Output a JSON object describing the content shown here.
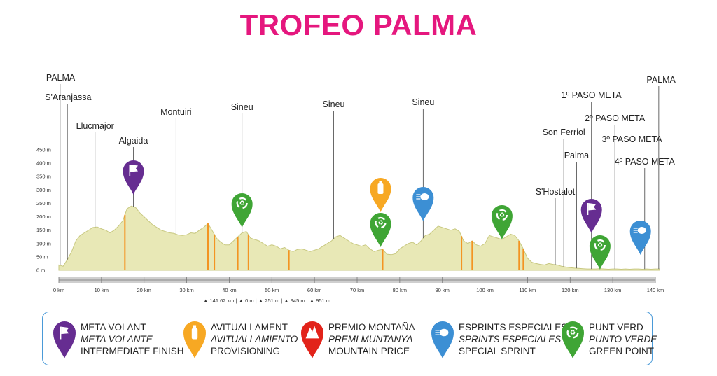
{
  "title": "TROFEO PALMA",
  "profile": {
    "y_axis": {
      "min": 0,
      "max": 450,
      "step": 50,
      "unit": "m"
    },
    "x_axis": {
      "min": 0,
      "max": 140,
      "step": 10,
      "unit": "km"
    },
    "elevation_km": [
      0,
      1,
      2,
      3,
      4,
      5,
      6,
      7,
      8,
      9,
      10,
      11,
      12,
      13,
      14,
      15,
      16,
      17,
      18,
      19,
      20,
      21,
      22,
      23,
      24,
      25,
      26,
      27,
      28,
      29,
      30,
      31,
      32,
      33,
      34,
      35,
      36,
      37,
      38,
      39,
      40,
      41,
      42,
      43,
      44,
      45,
      46,
      47,
      48,
      49,
      50,
      51,
      52,
      53,
      54,
      55,
      56,
      57,
      58,
      59,
      60,
      61,
      62,
      63,
      64,
      65,
      66,
      67,
      68,
      69,
      70,
      71,
      72,
      73,
      74,
      75,
      76,
      77,
      78,
      79,
      80,
      81,
      82,
      83,
      84,
      85,
      86,
      87,
      88,
      89,
      90,
      91,
      92,
      93,
      94,
      95,
      96,
      97,
      98,
      99,
      100,
      101,
      102,
      103,
      104,
      105,
      106,
      107,
      108,
      109,
      110,
      111,
      112,
      113,
      114,
      115,
      116,
      117,
      118,
      119,
      120,
      121,
      122,
      123,
      124,
      125,
      126,
      127,
      128,
      129,
      130,
      131,
      132,
      133,
      134,
      135,
      136,
      137,
      138,
      139,
      140,
      141
    ],
    "elevation_m": [
      20,
      15,
      40,
      70,
      110,
      130,
      140,
      150,
      160,
      162,
      155,
      150,
      140,
      150,
      165,
      185,
      230,
      240,
      235,
      215,
      200,
      185,
      170,
      160,
      150,
      145,
      140,
      138,
      132,
      130,
      133,
      140,
      138,
      150,
      160,
      175,
      148,
      120,
      105,
      95,
      95,
      110,
      125,
      140,
      145,
      120,
      115,
      110,
      100,
      90,
      95,
      90,
      80,
      85,
      75,
      70,
      78,
      80,
      75,
      70,
      75,
      80,
      90,
      100,
      110,
      125,
      130,
      120,
      110,
      100,
      95,
      90,
      95,
      80,
      70,
      75,
      78,
      60,
      58,
      62,
      80,
      90,
      100,
      105,
      95,
      110,
      130,
      135,
      150,
      165,
      160,
      155,
      150,
      155,
      145,
      110,
      100,
      110,
      95,
      90,
      100,
      130,
      125,
      120,
      115,
      125,
      135,
      130,
      110,
      80,
      45,
      30,
      25,
      22,
      20,
      25,
      22,
      20,
      15,
      12,
      10,
      8,
      7,
      6,
      5,
      5,
      5,
      6,
      5,
      4,
      5,
      5,
      4,
      5,
      4,
      5,
      5,
      4,
      5,
      4,
      5,
      5
    ],
    "towns": [
      {
        "name": "PALMA",
        "km": 0.3
      },
      {
        "name": "S'Aranjassa",
        "km": 2
      },
      {
        "name": "Llucmajor",
        "km": 8.5
      },
      {
        "name": "Algaida",
        "km": 17.5
      },
      {
        "name": "Montuiri",
        "km": 27.5
      },
      {
        "name": "Sineu",
        "km": 43
      },
      {
        "name": "Sineu",
        "km": 64.5
      },
      {
        "name": "Sineu",
        "km": 85.5
      },
      {
        "name": "S'Hostalot",
        "km": 116.5
      },
      {
        "name": "Son Ferriol",
        "km": 118.5
      },
      {
        "name": "Palma",
        "km": 121.5
      },
      {
        "name": "1º PASO META",
        "km": 125
      },
      {
        "name": "2º PASO META",
        "km": 130.5
      },
      {
        "name": "3º PASO META",
        "km": 134.5
      },
      {
        "name": "4º PASO META",
        "km": 137.5
      },
      {
        "name": "PALMA",
        "km": 140.8
      }
    ],
    "markers": [
      {
        "type": "meta_volant",
        "km": 17.5,
        "icon": "flag-icon"
      },
      {
        "type": "punt_verd",
        "km": 43,
        "icon": "recycle-icon"
      },
      {
        "type": "avituallament",
        "km": 75.5,
        "icon": "bottle-icon"
      },
      {
        "type": "punt_verd",
        "km": 75.5,
        "icon": "recycle-icon"
      },
      {
        "type": "esprint",
        "km": 85.5,
        "icon": "sprint-icon"
      },
      {
        "type": "punt_verd",
        "km": 104,
        "icon": "recycle-icon"
      },
      {
        "type": "meta_volant",
        "km": 125,
        "icon": "flag-icon"
      },
      {
        "type": "punt_verd",
        "km": 127,
        "icon": "recycle-icon"
      },
      {
        "type": "esprint",
        "km": 136.5,
        "icon": "sprint-icon"
      }
    ],
    "stats": {
      "distance": "141.62 km",
      "altitude_min": "0 m",
      "altitude_max": "251 m",
      "ascent": "945 m",
      "descent": "951 m"
    }
  },
  "colors": {
    "title": "#e5177e",
    "profile_fill": "#e8e8b6",
    "profile_line": "#c8c880",
    "meta_volant": "#662d91",
    "avituallament": "#f7a823",
    "premio_montana": "#e2231a",
    "esprint": "#3c8fd4",
    "punt_verd": "#3fa535"
  },
  "legend": [
    {
      "id": "meta-volant",
      "icon": "flag-icon",
      "color_key": "meta_volant",
      "line1": "META VOLANT",
      "line2": "META VOLANTE",
      "line3": "INTERMEDIATE FINISH"
    },
    {
      "id": "avituallament",
      "icon": "bottle-icon",
      "color_key": "avituallament",
      "line1": "AVITUALLAMENT",
      "line2": "AVITUALLAMIENTO",
      "line3": "PROVISIONING"
    },
    {
      "id": "premio-montana",
      "icon": "mountain-icon",
      "color_key": "premio_montana",
      "line1": "PREMIO MONTAÑA",
      "line2": "PREMI MUNTANYA",
      "line3": "MOUNTAIN PRICE"
    },
    {
      "id": "esprints-especiales",
      "icon": "sprint-icon",
      "color_key": "esprint",
      "line1": "ESPRINTS ESPECIALES",
      "line2": "SPRINTS ESPECIALES",
      "line3": "SPECIAL SPRINT"
    },
    {
      "id": "punt-verd",
      "icon": "recycle-icon",
      "color_key": "punt_verd",
      "line1": "PUNT VERD",
      "line2": "PUNTO VERDE",
      "line3": "GREEN POINT"
    }
  ]
}
